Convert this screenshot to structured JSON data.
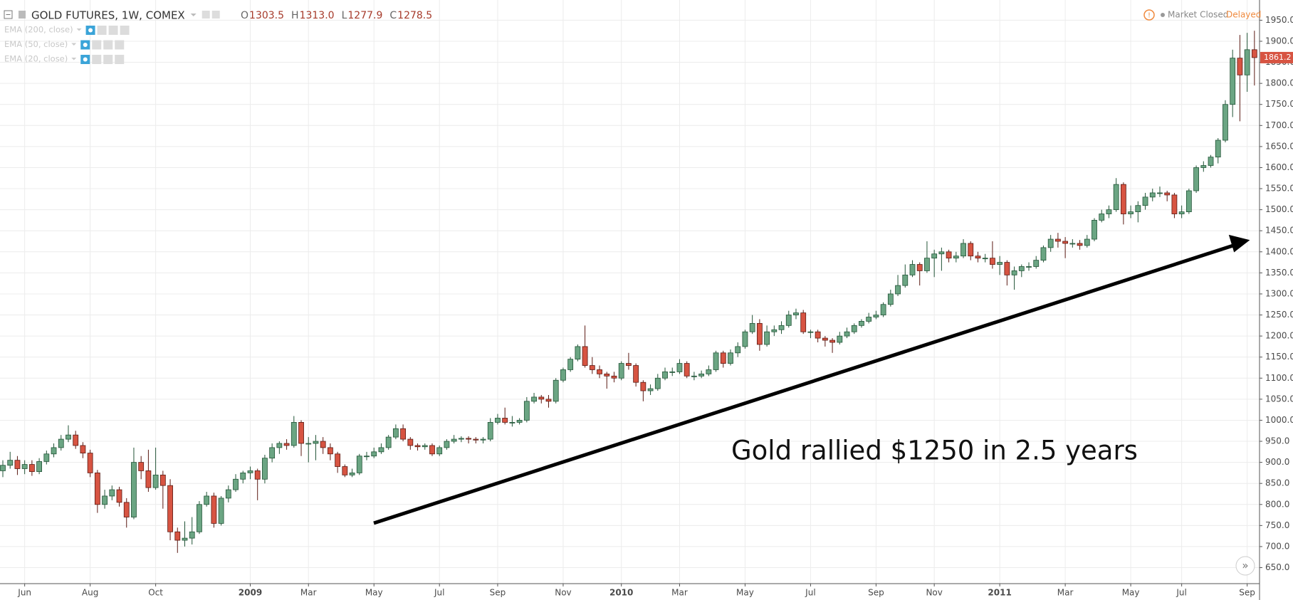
{
  "chart_data": {
    "type": "candlestick",
    "title": "GOLD FUTURES, 1W, COMEX",
    "readout": [
      {
        "label": "O",
        "text": "1303.5"
      },
      {
        "label": "H",
        "text": "1313.0"
      },
      {
        "label": "L",
        "text": "1277.9"
      },
      {
        "label": "C",
        "text": "1278.5"
      }
    ],
    "indicators": [
      "EMA (200, close)",
      "EMA (50, close)",
      "EMA (20, close)"
    ],
    "status": "Market Closed",
    "feed": "Delayed",
    "annotation": "Gold rallied $1250 in 2.5 years",
    "up_color": "#6ba583",
    "down_color": "#d75442",
    "grid": true,
    "categories": [
      null,
      null,
      null,
      "Jun",
      null,
      null,
      null,
      null,
      null,
      null,
      null,
      null,
      "Aug",
      null,
      null,
      null,
      null,
      null,
      null,
      null,
      null,
      "Oct",
      null,
      null,
      null,
      null,
      null,
      null,
      null,
      null,
      null,
      null,
      null,
      null,
      "2009",
      null,
      null,
      null,
      null,
      null,
      null,
      null,
      "Mar",
      null,
      null,
      null,
      null,
      null,
      null,
      null,
      null,
      "May",
      null,
      null,
      null,
      null,
      null,
      null,
      null,
      null,
      "Jul",
      null,
      null,
      null,
      null,
      null,
      null,
      null,
      "Sep",
      null,
      null,
      null,
      null,
      null,
      null,
      null,
      null,
      "Nov",
      null,
      null,
      null,
      null,
      null,
      null,
      null,
      "2010",
      null,
      null,
      null,
      null,
      null,
      null,
      null,
      "Mar",
      null,
      null,
      null,
      null,
      null,
      null,
      null,
      null,
      "May",
      null,
      null,
      null,
      null,
      null,
      null,
      null,
      null,
      "Jul",
      null,
      null,
      null,
      null,
      null,
      null,
      null,
      null,
      "Sep",
      null,
      null,
      null,
      null,
      null,
      null,
      null,
      "Nov",
      null,
      null,
      null,
      null,
      null,
      null,
      null,
      null,
      "2011",
      null,
      null,
      null,
      null,
      null,
      null,
      null,
      null,
      "Mar",
      null,
      null,
      null,
      null,
      null,
      null,
      null,
      null,
      "May",
      null,
      null,
      null,
      null,
      null,
      null,
      "Jul",
      null,
      null,
      null,
      null,
      null,
      null,
      null,
      null,
      "Sep",
      null
    ],
    "open": [
      880,
      893,
      905,
      885,
      895,
      878,
      902,
      920,
      935,
      955,
      965,
      940,
      922,
      875,
      800,
      820,
      835,
      805,
      770,
      900,
      880,
      840,
      870,
      845,
      735,
      715,
      720,
      735,
      800,
      820,
      755,
      815,
      835,
      860,
      875,
      880,
      860,
      910,
      935,
      945,
      940,
      995,
      945,
      945,
      950,
      935,
      920,
      890,
      870,
      875,
      915,
      915,
      925,
      935,
      960,
      980,
      955,
      940,
      937,
      940,
      920,
      935,
      950,
      955,
      957,
      955,
      953,
      955,
      995,
      1005,
      995,
      995,
      1000,
      1045,
      1055,
      1050,
      1045,
      1095,
      1120,
      1145,
      1175,
      1130,
      1120,
      1110,
      1105,
      1100,
      1135,
      1130,
      1090,
      1070,
      1075,
      1100,
      1115,
      1115,
      1135,
      1105,
      1105,
      1110,
      1120,
      1160,
      1135,
      1160,
      1175,
      1210,
      1230,
      1180,
      1210,
      1215,
      1225,
      1250,
      1255,
      1210,
      1210,
      1195,
      1190,
      1185,
      1200,
      1210,
      1225,
      1235,
      1245,
      1250,
      1275,
      1300,
      1320,
      1345,
      1370,
      1355,
      1385,
      1395,
      1400,
      1385,
      1390,
      1420,
      1390,
      1385,
      1385,
      1370,
      1375,
      1345,
      1355,
      1365,
      1365,
      1380,
      1410,
      1430,
      1425,
      1420,
      1420,
      1415,
      1430,
      1475,
      1490,
      1500,
      1560,
      1490,
      1495,
      1510,
      1530,
      1540,
      1540,
      1535,
      1490,
      1495,
      1545,
      1600,
      1605,
      1625,
      1665,
      1750,
      1860,
      1820,
      1880
    ],
    "high": [
      905,
      925,
      915,
      905,
      905,
      910,
      928,
      945,
      965,
      988,
      975,
      948,
      930,
      882,
      835,
      845,
      842,
      815,
      935,
      915,
      930,
      935,
      880,
      860,
      745,
      760,
      770,
      808,
      830,
      828,
      820,
      845,
      872,
      880,
      890,
      885,
      918,
      945,
      950,
      955,
      1010,
      1000,
      960,
      965,
      960,
      945,
      925,
      895,
      885,
      920,
      925,
      935,
      945,
      965,
      990,
      990,
      960,
      945,
      945,
      945,
      940,
      955,
      965,
      962,
      962,
      960,
      960,
      1005,
      1015,
      1030,
      1010,
      1005,
      1055,
      1065,
      1060,
      1060,
      1100,
      1125,
      1150,
      1180,
      1225,
      1150,
      1130,
      1115,
      1115,
      1140,
      1160,
      1135,
      1095,
      1085,
      1110,
      1125,
      1125,
      1145,
      1140,
      1115,
      1118,
      1130,
      1165,
      1165,
      1168,
      1185,
      1215,
      1250,
      1240,
      1225,
      1225,
      1235,
      1260,
      1265,
      1262,
      1215,
      1215,
      1200,
      1195,
      1210,
      1220,
      1230,
      1240,
      1255,
      1260,
      1280,
      1310,
      1345,
      1370,
      1380,
      1375,
      1425,
      1405,
      1410,
      1405,
      1400,
      1430,
      1425,
      1400,
      1395,
      1425,
      1390,
      1380,
      1365,
      1370,
      1375,
      1390,
      1415,
      1440,
      1445,
      1435,
      1430,
      1428,
      1440,
      1480,
      1500,
      1510,
      1575,
      1565,
      1510,
      1520,
      1540,
      1550,
      1555,
      1545,
      1540,
      1510,
      1550,
      1605,
      1615,
      1630,
      1670,
      1760,
      1880,
      1915,
      1920,
      1925
    ],
    "low": [
      865,
      885,
      870,
      872,
      868,
      872,
      895,
      912,
      928,
      948,
      932,
      910,
      865,
      780,
      790,
      810,
      795,
      745,
      765,
      860,
      830,
      835,
      790,
      715,
      685,
      700,
      705,
      730,
      795,
      745,
      750,
      805,
      830,
      850,
      860,
      810,
      850,
      900,
      920,
      930,
      935,
      915,
      900,
      905,
      920,
      905,
      875,
      865,
      865,
      870,
      905,
      910,
      920,
      930,
      955,
      950,
      930,
      928,
      930,
      915,
      915,
      930,
      945,
      948,
      945,
      945,
      945,
      950,
      990,
      990,
      985,
      990,
      995,
      1040,
      1040,
      1030,
      1040,
      1090,
      1115,
      1140,
      1125,
      1110,
      1100,
      1075,
      1090,
      1095,
      1120,
      1080,
      1045,
      1060,
      1070,
      1095,
      1105,
      1110,
      1100,
      1095,
      1100,
      1105,
      1115,
      1125,
      1130,
      1150,
      1170,
      1205,
      1165,
      1175,
      1200,
      1205,
      1220,
      1240,
      1205,
      1195,
      1185,
      1175,
      1160,
      1180,
      1195,
      1205,
      1220,
      1230,
      1240,
      1245,
      1270,
      1295,
      1315,
      1340,
      1320,
      1350,
      1340,
      1355,
      1375,
      1375,
      1385,
      1380,
      1375,
      1375,
      1360,
      1345,
      1320,
      1310,
      1340,
      1355,
      1360,
      1375,
      1400,
      1410,
      1385,
      1410,
      1405,
      1410,
      1425,
      1470,
      1480,
      1495,
      1465,
      1480,
      1470,
      1500,
      1520,
      1530,
      1520,
      1480,
      1480,
      1490,
      1540,
      1590,
      1600,
      1610,
      1660,
      1720,
      1710,
      1780,
      1795
    ],
    "close": [
      893,
      905,
      885,
      895,
      878,
      902,
      920,
      935,
      955,
      965,
      940,
      922,
      875,
      800,
      820,
      835,
      805,
      770,
      900,
      880,
      840,
      870,
      845,
      735,
      715,
      720,
      735,
      800,
      820,
      755,
      815,
      835,
      860,
      875,
      880,
      860,
      910,
      935,
      945,
      940,
      995,
      945,
      945,
      950,
      935,
      920,
      890,
      870,
      875,
      915,
      915,
      925,
      935,
      960,
      980,
      955,
      940,
      937,
      940,
      920,
      935,
      950,
      955,
      957,
      955,
      953,
      955,
      995,
      1005,
      995,
      995,
      1000,
      1045,
      1055,
      1050,
      1045,
      1095,
      1120,
      1145,
      1175,
      1130,
      1120,
      1110,
      1105,
      1100,
      1135,
      1130,
      1090,
      1070,
      1075,
      1100,
      1115,
      1115,
      1135,
      1105,
      1105,
      1110,
      1120,
      1160,
      1135,
      1160,
      1175,
      1210,
      1230,
      1180,
      1210,
      1215,
      1225,
      1250,
      1255,
      1210,
      1210,
      1195,
      1190,
      1185,
      1200,
      1210,
      1225,
      1235,
      1245,
      1250,
      1275,
      1300,
      1320,
      1345,
      1370,
      1355,
      1385,
      1395,
      1400,
      1385,
      1390,
      1420,
      1390,
      1385,
      1385,
      1370,
      1375,
      1345,
      1355,
      1365,
      1365,
      1380,
      1410,
      1430,
      1425,
      1420,
      1420,
      1415,
      1430,
      1475,
      1490,
      1500,
      1560,
      1490,
      1495,
      1510,
      1530,
      1540,
      1540,
      1535,
      1490,
      1495,
      1545,
      1600,
      1605,
      1625,
      1665,
      1750,
      1860,
      1820,
      1880,
      1861.2
    ],
    "ylim": [
      612,
      1998
    ],
    "yticks": [
      {
        "value": 650,
        "label": "650.0"
      },
      {
        "value": 700,
        "label": "700.0"
      },
      {
        "value": 750,
        "label": "750.0"
      },
      {
        "value": 800,
        "label": "800.0"
      },
      {
        "value": 850,
        "label": "850.0"
      },
      {
        "value": 900,
        "label": "900.0"
      },
      {
        "value": 950,
        "label": "950.0"
      },
      {
        "value": 1000,
        "label": "1000.0"
      },
      {
        "value": 1050,
        "label": "1050.0"
      },
      {
        "value": 1100,
        "label": "1100.0"
      },
      {
        "value": 1150,
        "label": "1150.0"
      },
      {
        "value": 1200,
        "label": "1200.0"
      },
      {
        "value": 1250,
        "label": "1250.0"
      },
      {
        "value": 1300,
        "label": "1300.0"
      },
      {
        "value": 1350,
        "label": "1350.0"
      },
      {
        "value": 1400,
        "label": "1400.0"
      },
      {
        "value": 1450,
        "label": "1450.0"
      },
      {
        "value": 1500,
        "label": "1500.0"
      },
      {
        "value": 1550,
        "label": "1550.0"
      },
      {
        "value": 1600,
        "label": "1600.0"
      },
      {
        "value": 1650,
        "label": "1650.0"
      },
      {
        "value": 1700,
        "label": "1700.0"
      },
      {
        "value": 1750,
        "label": "1750.0"
      },
      {
        "value": 1800,
        "label": "1800.0"
      },
      {
        "value": 1850,
        "label": "1850.0"
      },
      {
        "value": 1900,
        "label": "1900.0"
      },
      {
        "value": 1950,
        "label": "1950.0"
      }
    ]
  }
}
